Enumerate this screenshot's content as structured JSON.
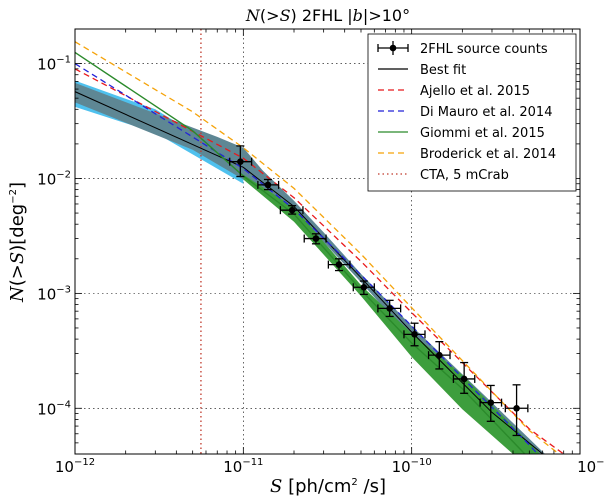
{
  "chart_data": {
    "type": "scatter",
    "title": "N(>S) 2FHL |b|>10°",
    "title_parts": {
      "italic_pre": "N",
      "mid1": "(>",
      "italic_s": "S",
      "mid2": ") 2FHL |",
      "italic_b": "b",
      "post": "|>10°"
    },
    "xlabel": "S [ph/cm² /s]",
    "xlabel_parts": {
      "italic": "S",
      "rest": " [ph/cm",
      "sup": "2",
      "rest2": " /s]"
    },
    "ylabel": "N(>S)[deg⁻²]",
    "ylabel_parts": {
      "italic_n": "N",
      "mid1": "(>",
      "italic_s": "S",
      "mid2": ")[deg",
      "sup": "−2",
      "post": "]"
    },
    "x_scale": "log",
    "y_scale": "log",
    "xlim": [
      1e-12,
      1e-09
    ],
    "ylim": [
      4e-05,
      0.2
    ],
    "grid": true,
    "legend_position": "top-right",
    "x_ticks": [
      {
        "base": "10",
        "exp": "-12",
        "value": 1e-12
      },
      {
        "base": "10",
        "exp": "-11",
        "value": 1e-11
      },
      {
        "base": "10",
        "exp": "-10",
        "value": 1e-10
      },
      {
        "base": "10",
        "exp": "-9",
        "value": 1e-09
      }
    ],
    "y_ticks": [
      {
        "base": "10",
        "exp": "-4",
        "value": 0.0001
      },
      {
        "base": "10",
        "exp": "-3",
        "value": 0.001
      },
      {
        "base": "10",
        "exp": "-2",
        "value": 0.01
      },
      {
        "base": "10",
        "exp": "-1",
        "value": 0.1
      }
    ],
    "data_points": {
      "name": "2FHL source counts",
      "points": [
        {
          "x": 9.6e-12,
          "y": 0.014,
          "xlo": 8.3e-12,
          "xhi": 1.12e-11,
          "ylo": 0.0104,
          "yhi": 0.0192
        },
        {
          "x": 1.4e-11,
          "y": 0.0088,
          "xlo": 1.22e-11,
          "xhi": 1.62e-11,
          "ylo": 0.008,
          "yhi": 0.0098
        },
        {
          "x": 1.95e-11,
          "y": 0.0053,
          "xlo": 1.66e-11,
          "xhi": 2.26e-11,
          "ylo": 0.0049,
          "yhi": 0.0058
        },
        {
          "x": 2.7e-11,
          "y": 0.003,
          "xlo": 2.3e-11,
          "xhi": 3.1e-11,
          "ylo": 0.0027,
          "yhi": 0.0033
        },
        {
          "x": 3.7e-11,
          "y": 0.00178,
          "xlo": 3.2e-11,
          "xhi": 4.3e-11,
          "ylo": 0.00158,
          "yhi": 0.002
        },
        {
          "x": 5.2e-11,
          "y": 0.00113,
          "xlo": 4.5e-11,
          "xhi": 6e-11,
          "ylo": 0.00098,
          "yhi": 0.00128
        },
        {
          "x": 7.4e-11,
          "y": 0.00074,
          "xlo": 6.3e-11,
          "xhi": 8.6e-11,
          "ylo": 0.00063,
          "yhi": 0.00087
        },
        {
          "x": 1.04e-10,
          "y": 0.00044,
          "xlo": 9e-11,
          "xhi": 1.2e-10,
          "ylo": 0.00035,
          "yhi": 0.00055
        },
        {
          "x": 1.46e-10,
          "y": 0.00029,
          "xlo": 1.26e-10,
          "xhi": 1.69e-10,
          "ylo": 0.00022,
          "yhi": 0.00038
        },
        {
          "x": 2.05e-10,
          "y": 0.00018,
          "xlo": 1.77e-10,
          "xhi": 2.37e-10,
          "ylo": 0.000135,
          "yhi": 0.00025
        },
        {
          "x": 2.95e-10,
          "y": 0.000112,
          "xlo": 2.55e-10,
          "xhi": 3.42e-10,
          "ylo": 7.7e-05,
          "yhi": 0.000158
        },
        {
          "x": 4.2e-10,
          "y": 0.0001,
          "xlo": 3.6e-10,
          "xhi": 4.9e-10,
          "ylo": 5.8e-05,
          "yhi": 0.00016
        }
      ]
    },
    "best_fit_band": {
      "upper": [
        [
          1e-12,
          0.068
        ],
        [
          7e-12,
          0.023
        ],
        [
          1e-11,
          0.0185
        ],
        [
          1.3e-11,
          0.0118
        ],
        [
          2e-11,
          0.0064
        ],
        [
          3e-11,
          0.0034
        ],
        [
          5e-11,
          0.00148
        ],
        [
          1e-10,
          0.00052
        ],
        [
          2e-10,
          0.000198
        ],
        [
          3e-10,
          0.000112
        ],
        [
          6.2e-10,
          4e-05
        ]
      ],
      "lower": [
        [
          1e-12,
          0.046
        ],
        [
          5e-12,
          0.0178
        ],
        [
          1e-11,
          0.0098
        ],
        [
          1.3e-11,
          0.008
        ],
        [
          2e-11,
          0.0054
        ],
        [
          3e-11,
          0.0028
        ],
        [
          5e-11,
          0.00125
        ],
        [
          1e-10,
          0.0004
        ],
        [
          2e-10,
          0.00014
        ],
        [
          3e-10,
          7.2e-05
        ],
        [
          4.5e-10,
          4e-05
        ]
      ]
    },
    "lightblue_band": {
      "upper": [
        [
          1e-12,
          0.071
        ],
        [
          3e-12,
          0.04
        ],
        [
          1e-11,
          0.0135
        ]
      ],
      "lower": [
        [
          1e-12,
          0.042
        ],
        [
          3e-12,
          0.025
        ],
        [
          1e-11,
          0.009
        ]
      ]
    },
    "green_band": {
      "upper": [
        [
          1e-11,
          0.0108
        ],
        [
          2e-11,
          0.0056
        ],
        [
          5e-11,
          0.00118
        ],
        [
          1e-10,
          0.00045
        ],
        [
          2e-10,
          0.000195
        ],
        [
          5e-10,
          5e-05
        ],
        [
          5.8e-10,
          4e-05
        ]
      ],
      "lower": [
        [
          1e-11,
          0.0098
        ],
        [
          2e-11,
          0.0042
        ],
        [
          5e-11,
          0.00095
        ],
        [
          1e-10,
          0.00028
        ],
        [
          2e-10,
          9.8e-05
        ],
        [
          4e-10,
          4e-05
        ]
      ]
    },
    "series": [
      {
        "name": "Best fit",
        "color": "#000000",
        "dash": "solid",
        "width": 1,
        "points": [
          [
            1e-12,
            0.057
          ],
          [
            1e-11,
            0.0125
          ],
          [
            2e-11,
            0.0057
          ],
          [
            5e-11,
            0.00137
          ],
          [
            1e-10,
            0.00046
          ],
          [
            3e-10,
            9.2e-05
          ],
          [
            6e-10,
            4e-05
          ]
        ]
      },
      {
        "name": "Ajello et al. 2015",
        "color": "#e8191c",
        "dash": "dashed",
        "width": 1.3,
        "points": [
          [
            1e-12,
            0.09
          ],
          [
            1e-11,
            0.015
          ],
          [
            2e-11,
            0.0068
          ],
          [
            5e-11,
            0.0019
          ],
          [
            1e-10,
            0.00068
          ],
          [
            2e-10,
            0.00025
          ],
          [
            5e-10,
            6.6e-05
          ],
          [
            8e-10,
            4e-05
          ]
        ]
      },
      {
        "name": "Di Mauro et al. 2014",
        "color": "#2323d8",
        "dash": "dashed",
        "width": 1.3,
        "points": [
          [
            1e-12,
            0.1
          ],
          [
            1e-11,
            0.0122
          ],
          [
            2e-11,
            0.0054
          ],
          [
            5e-11,
            0.00145
          ],
          [
            1e-10,
            0.00052
          ],
          [
            2e-10,
            0.000185
          ],
          [
            5e-10,
            4.8e-05
          ],
          [
            5.6e-10,
            4e-05
          ]
        ]
      },
      {
        "name": "Giommi et al. 2015",
        "color": "#2b8a2b",
        "dash": "solid",
        "width": 1.4,
        "points": [
          [
            1e-12,
            0.125
          ],
          [
            5e-12,
            0.026
          ],
          [
            1e-11,
            0.0105
          ],
          [
            2e-11,
            0.0049
          ],
          [
            5e-11,
            0.00107
          ],
          [
            1e-10,
            0.00037
          ],
          [
            2e-10,
            0.000148
          ],
          [
            4.7e-10,
            4e-05
          ]
        ]
      },
      {
        "name": "Broderick et al. 2014",
        "color": "#f5a30a",
        "dash": "dashed",
        "width": 1.3,
        "points": [
          [
            1e-12,
            0.155
          ],
          [
            5e-12,
            0.038
          ],
          [
            1e-11,
            0.0185
          ],
          [
            2e-11,
            0.0082
          ],
          [
            5e-11,
            0.0022
          ],
          [
            1e-10,
            0.00075
          ],
          [
            2e-10,
            0.00026
          ],
          [
            5e-10,
            6.4e-05
          ],
          [
            7.5e-10,
            4e-05
          ]
        ]
      },
      {
        "name": "CTA, 5 mCrab",
        "color": "#c0392b",
        "dash": "dotted",
        "width": 1.3,
        "vertical_x": 5.6e-12
      }
    ],
    "legend": [
      {
        "label": "2FHL source counts",
        "kind": "errorbar",
        "color": "#000000"
      },
      {
        "label": "Best fit",
        "kind": "solid",
        "color": "#000000"
      },
      {
        "label": "Ajello et al. 2015",
        "kind": "dashed",
        "color": "#e8191c"
      },
      {
        "label": "Di Mauro et al. 2014",
        "kind": "dashed",
        "color": "#2323d8"
      },
      {
        "label": "Giommi et al. 2015",
        "kind": "solid",
        "color": "#2b8a2b"
      },
      {
        "label": "Broderick et al. 2014",
        "kind": "dashed",
        "color": "#f5a30a"
      },
      {
        "label": "CTA, 5 mCrab",
        "kind": "dotted",
        "color": "#c0392b"
      }
    ],
    "colors": {
      "band_fill": "#5e8794",
      "lightblue_fill": "#4fc1ee",
      "green_fill": "#3d9e3d",
      "point_color": "#000000"
    }
  }
}
